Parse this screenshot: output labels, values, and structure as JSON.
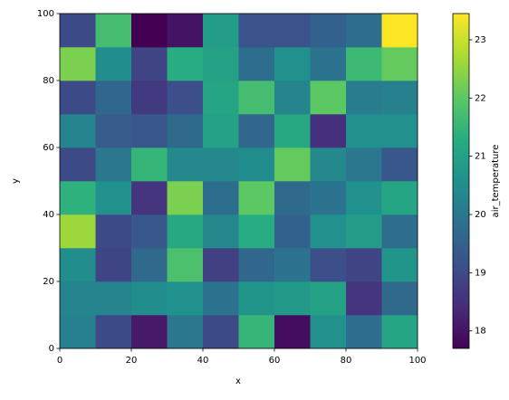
{
  "chart_data": {
    "type": "heatmap",
    "x_label": "x",
    "y_label": "y",
    "colorbar_label": "air_temperature",
    "x": [
      0,
      10,
      20,
      30,
      40,
      50,
      60,
      70,
      80,
      90,
      100
    ],
    "y": [
      0,
      10,
      20,
      30,
      40,
      50,
      60,
      70,
      80,
      90,
      100
    ],
    "z": [
      [
        20.2,
        19.0,
        18.1,
        20.0,
        19.0,
        21.5,
        17.9,
        20.6,
        19.8,
        21.1
      ],
      [
        20.3,
        20.3,
        20.5,
        20.6,
        19.9,
        20.7,
        20.8,
        21.0,
        18.6,
        19.7
      ],
      [
        20.5,
        18.9,
        19.7,
        21.8,
        18.8,
        19.6,
        19.9,
        19.1,
        18.9,
        20.7
      ],
      [
        22.6,
        19.0,
        19.3,
        21.2,
        20.4,
        21.3,
        19.5,
        20.6,
        20.9,
        19.8
      ],
      [
        21.4,
        20.6,
        18.6,
        22.3,
        19.8,
        22.0,
        19.7,
        19.9,
        20.6,
        21.1
      ],
      [
        19.0,
        20.0,
        21.5,
        20.4,
        20.4,
        20.5,
        22.1,
        20.4,
        20.0,
        19.3
      ],
      [
        20.3,
        19.4,
        19.3,
        19.7,
        21.0,
        19.6,
        21.2,
        18.5,
        20.6,
        20.6
      ],
      [
        19.0,
        19.6,
        18.7,
        19.1,
        21.1,
        21.7,
        20.3,
        22.0,
        20.1,
        20.2
      ],
      [
        22.3,
        20.5,
        18.9,
        21.3,
        21.0,
        19.8,
        20.6,
        19.9,
        21.6,
        22.1
      ],
      [
        19.0,
        21.7,
        17.7,
        18.0,
        20.9,
        19.2,
        19.2,
        19.5,
        19.8,
        23.45
      ]
    ],
    "xlim": [
      0,
      100
    ],
    "ylim": [
      0,
      100
    ],
    "xticks": [
      0,
      20,
      40,
      60,
      80,
      100
    ],
    "yticks": [
      0,
      20,
      40,
      60,
      80,
      100
    ],
    "clim": [
      17.7,
      23.45
    ],
    "cticks": [
      18,
      19,
      20,
      21,
      22,
      23
    ],
    "colormap": [
      "#440154",
      "#472c7a",
      "#3b518b",
      "#2c718e",
      "#21908d",
      "#27ad81",
      "#5cc863",
      "#aadc32",
      "#fde725"
    ]
  }
}
